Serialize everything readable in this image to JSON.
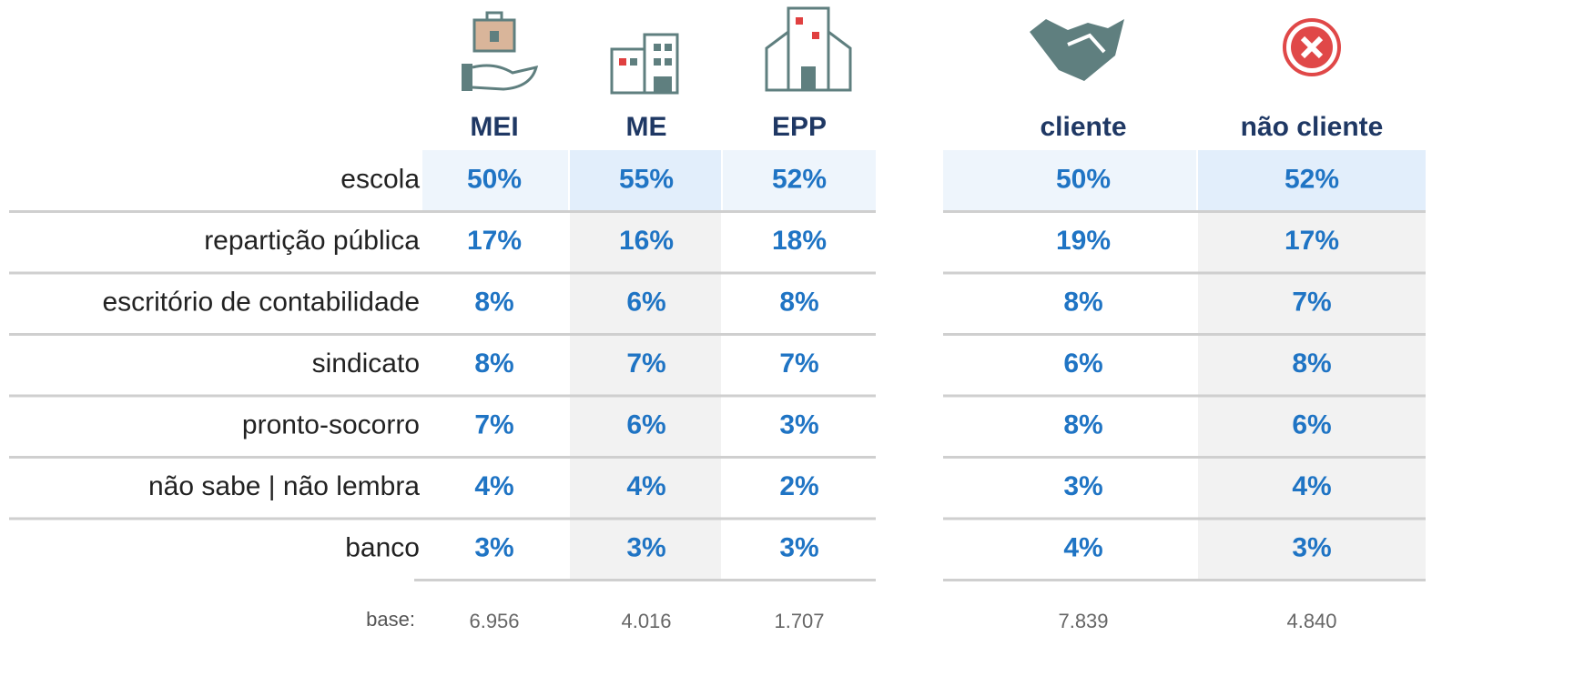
{
  "columns": [
    "MEI",
    "ME",
    "EPP",
    "cliente",
    "não cliente"
  ],
  "rows": [
    {
      "label": "escola",
      "values": [
        "50%",
        "55%",
        "52%",
        "50%",
        "52%"
      ]
    },
    {
      "label": "repartição pública",
      "values": [
        "17%",
        "16%",
        "18%",
        "19%",
        "17%"
      ]
    },
    {
      "label": "escritório de contabilidade",
      "values": [
        "8%",
        "6%",
        "8%",
        "8%",
        "7%"
      ]
    },
    {
      "label": "sindicato",
      "values": [
        "8%",
        "7%",
        "7%",
        "6%",
        "8%"
      ]
    },
    {
      "label": "pronto-socorro",
      "values": [
        "7%",
        "6%",
        "3%",
        "8%",
        "6%"
      ]
    },
    {
      "label": "não sabe | não lembra",
      "values": [
        "4%",
        "4%",
        "2%",
        "3%",
        "4%"
      ]
    },
    {
      "label": "banco",
      "values": [
        "3%",
        "3%",
        "3%",
        "4%",
        "3%"
      ]
    }
  ],
  "base": {
    "label": "base:",
    "values": [
      "6.956",
      "4.016",
      "1.707",
      "7.839",
      "4.840"
    ]
  }
}
